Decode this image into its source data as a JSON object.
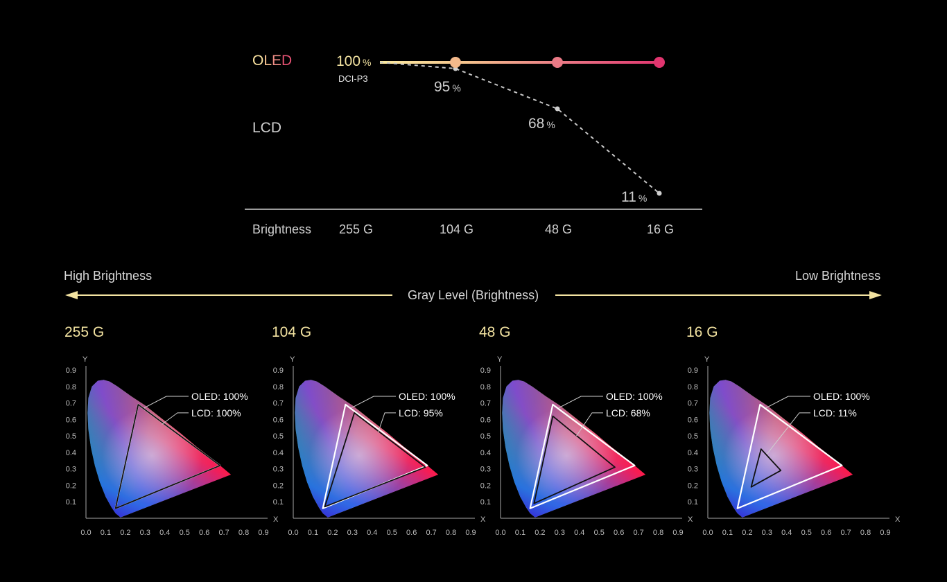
{
  "chart_data": [
    {
      "type": "line",
      "title": "",
      "xlabel": "Brightness",
      "categories": [
        "255 G",
        "104 G",
        "48 G",
        "16 G"
      ],
      "series": [
        {
          "name": "OLED",
          "values": [
            100,
            100,
            100,
            100
          ],
          "colors": [
            "#f7d58c",
            "#f3b98b",
            "#ea7a86",
            "#e1356f"
          ]
        },
        {
          "name": "LCD",
          "values": [
            100,
            95,
            68,
            11
          ]
        }
      ],
      "reference_label": "DCI-P3",
      "percent_symbol": "%",
      "start_label": "100",
      "value_labels": [
        "95",
        "68",
        "11"
      ]
    },
    {
      "type": "scatter",
      "subtype": "cie-chromaticity",
      "xlabel": "X",
      "ylabel": "Y",
      "xlim": [
        0.0,
        0.9
      ],
      "ylim": [
        0.0,
        0.9
      ],
      "x_ticks": [
        "0.0",
        "0.1",
        "0.2",
        "0.3",
        "0.4",
        "0.5",
        "0.6",
        "0.7",
        "0.8",
        "0.9"
      ],
      "y_ticks": [
        "0.1",
        "0.2",
        "0.3",
        "0.4",
        "0.5",
        "0.6",
        "0.7",
        "0.8",
        "0.9"
      ],
      "panels": [
        {
          "title": "255 G",
          "oled_label": "OLED: 100%",
          "lcd_label": "LCD: 100%",
          "oled_triangle": [
            [
              0.68,
              0.32
            ],
            [
              0.265,
              0.69
            ],
            [
              0.15,
              0.06
            ]
          ],
          "lcd_triangle": [
            [
              0.68,
              0.32
            ],
            [
              0.265,
              0.69
            ],
            [
              0.15,
              0.06
            ]
          ]
        },
        {
          "title": "104 G",
          "oled_label": "OLED: 100%",
          "lcd_label": "LCD: 95%",
          "oled_triangle": [
            [
              0.68,
              0.32
            ],
            [
              0.265,
              0.69
            ],
            [
              0.15,
              0.06
            ]
          ],
          "lcd_triangle": [
            [
              0.67,
              0.31
            ],
            [
              0.31,
              0.64
            ],
            [
              0.16,
              0.07
            ]
          ]
        },
        {
          "title": "48 G",
          "oled_label": "OLED: 100%",
          "lcd_label": "LCD: 68%",
          "oled_triangle": [
            [
              0.68,
              0.32
            ],
            [
              0.265,
              0.69
            ],
            [
              0.15,
              0.06
            ]
          ],
          "lcd_triangle": [
            [
              0.58,
              0.31
            ],
            [
              0.265,
              0.62
            ],
            [
              0.17,
              0.09
            ]
          ]
        },
        {
          "title": "16 G",
          "oled_label": "OLED: 100%",
          "lcd_label": "LCD: 11%",
          "oled_triangle": [
            [
              0.68,
              0.32
            ],
            [
              0.265,
              0.69
            ],
            [
              0.15,
              0.06
            ]
          ],
          "lcd_triangle": [
            [
              0.37,
              0.29
            ],
            [
              0.27,
              0.42
            ],
            [
              0.22,
              0.19
            ]
          ]
        }
      ]
    }
  ],
  "gray_level": {
    "label": "Gray Level (Brightness)",
    "left": "High Brightness",
    "right": "Low Brightness"
  },
  "colors": {
    "yellow": "#f3e3a1",
    "oled_start": "#fbeaa0",
    "oled_end": "#e1356f",
    "lcd_gray": "#bdbdbd"
  }
}
